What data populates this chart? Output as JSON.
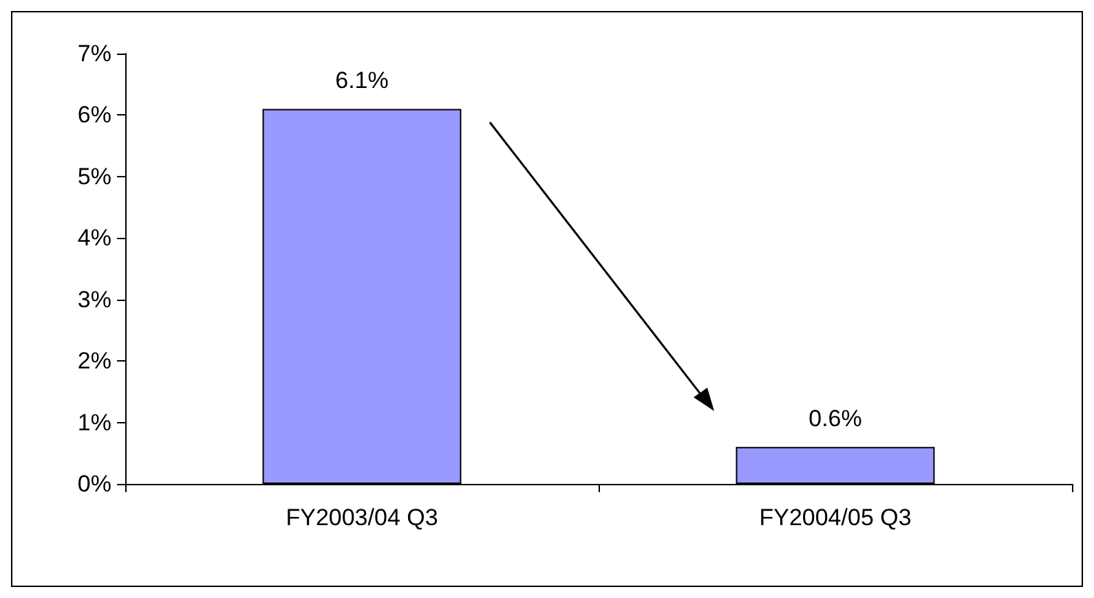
{
  "chart_data": {
    "type": "bar",
    "categories": [
      "FY2003/04 Q3",
      "FY2004/05 Q3"
    ],
    "values": [
      6.1,
      0.6
    ],
    "color": "#9999ff",
    "value_labels": [
      "6.1%",
      "0.6%"
    ],
    "ylim": [
      0,
      7
    ],
    "yticks": [
      {
        "value": 0,
        "label": "0%"
      },
      {
        "value": 1,
        "label": "1%"
      },
      {
        "value": 2,
        "label": "2%"
      },
      {
        "value": 3,
        "label": "3%"
      },
      {
        "value": 4,
        "label": "4%"
      },
      {
        "value": 5,
        "label": "5%"
      },
      {
        "value": 6,
        "label": "6%"
      },
      {
        "value": 7,
        "label": "7%"
      }
    ],
    "grid": false
  }
}
